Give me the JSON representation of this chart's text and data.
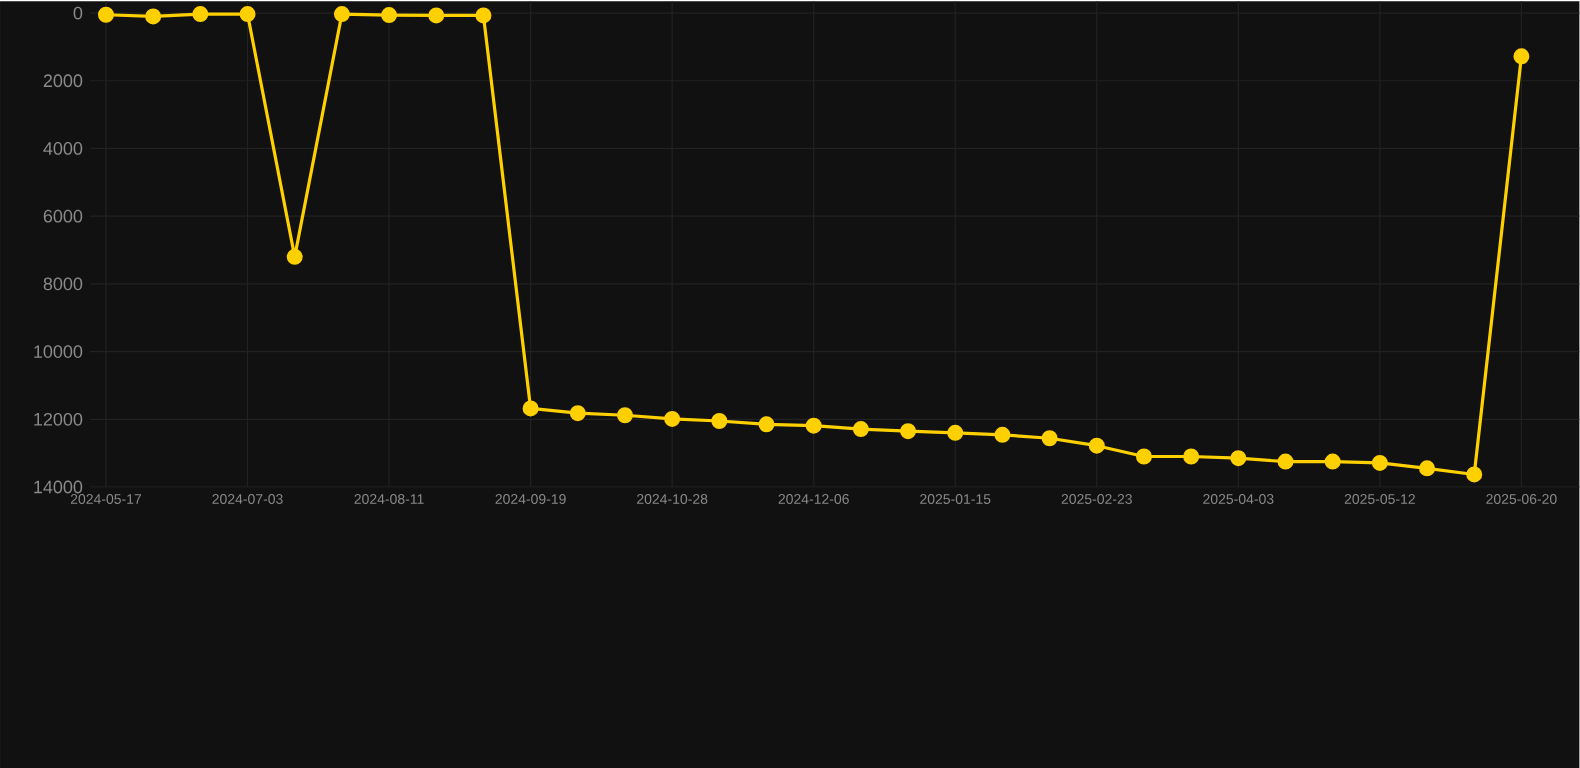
{
  "chart_data": {
    "type": "line",
    "categories": [
      "2024-05-17",
      null,
      null,
      "2024-07-03",
      null,
      null,
      "2024-08-11",
      null,
      null,
      "2024-09-19",
      null,
      null,
      "2024-10-28",
      null,
      null,
      "2024-12-06",
      null,
      null,
      "2025-01-15",
      null,
      null,
      "2025-02-23",
      null,
      null,
      "2025-04-03",
      null,
      null,
      "2025-05-12",
      null,
      null,
      "2025-06-20"
    ],
    "values": [
      50,
      100,
      30,
      30,
      7200,
      30,
      60,
      70,
      70,
      11680,
      11820,
      11880,
      11990,
      12050,
      12150,
      12190,
      12290,
      12350,
      12400,
      12460,
      12560,
      12780,
      13100,
      13100,
      13150,
      13250,
      13250,
      13290,
      13450,
      13630,
      1280
    ],
    "color": "#ffd000",
    "ylim": [
      14000,
      -350
    ],
    "yticks": [
      0,
      2000,
      4000,
      6000,
      8000,
      10000,
      12000,
      14000
    ],
    "grid": true,
    "marker": "circle",
    "line_style": "solid"
  }
}
